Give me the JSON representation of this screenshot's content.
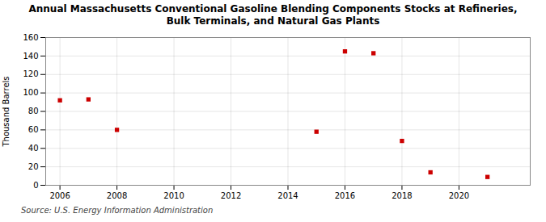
{
  "chart_data": {
    "type": "scatter",
    "title": "Annual Massachusetts Conventional Gasoline Blending Components Stocks at Refineries, Bulk Terminals, and Natural Gas Plants",
    "ylabel": "Thousand Barrels",
    "source": "Source: U.S. Energy Information Administration",
    "x": [
      2006,
      2007,
      2008,
      2015,
      2016,
      2017,
      2018,
      2019,
      2021
    ],
    "values": [
      92,
      93,
      60,
      58,
      145,
      143,
      48,
      14,
      9
    ],
    "color": "#cc0000",
    "marker": "square",
    "xlim": [
      2005.5,
      2022.5
    ],
    "xticks": [
      2006,
      2008,
      2010,
      2012,
      2014,
      2016,
      2018,
      2020
    ],
    "ylim": [
      0,
      160
    ],
    "yticks": [
      0,
      20,
      40,
      60,
      80,
      100,
      120,
      140,
      160
    ],
    "grid": true
  }
}
